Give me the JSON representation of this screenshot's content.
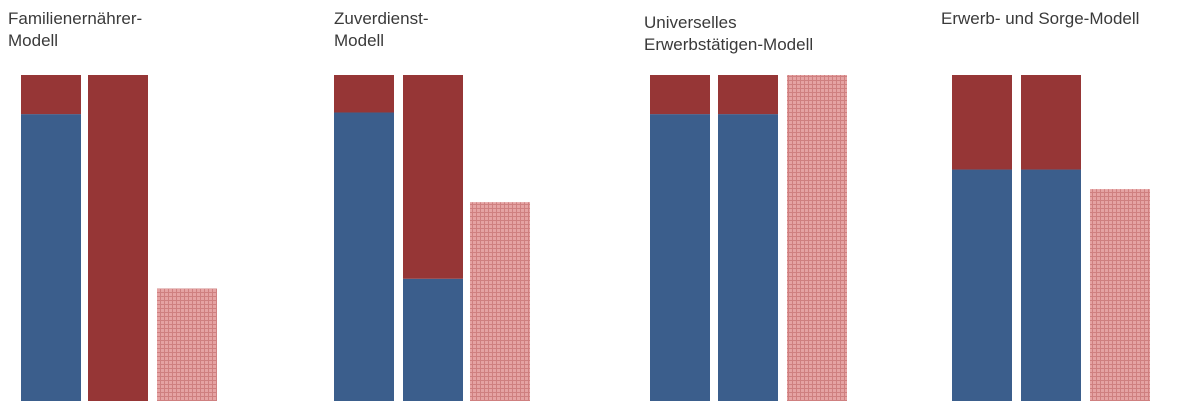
{
  "colors": {
    "blue": "#3b5e8c",
    "red": "#963636",
    "pattern": "#e5a3a3",
    "pattern_line": "#cf8080"
  },
  "chart_data": [
    {
      "type": "bar",
      "stacked": true,
      "title": "Familienernährer-\nModell",
      "ylim": [
        0,
        100
      ],
      "bars": [
        {
          "blue": 88,
          "red": 12
        },
        {
          "blue": 0,
          "red": 100
        },
        {
          "pattern": 34.5
        }
      ]
    },
    {
      "type": "bar",
      "stacked": true,
      "title": "Zuverdienst-\nModell",
      "ylim": [
        0,
        100
      ],
      "bars": [
        {
          "blue": 88.5,
          "red": 11.5
        },
        {
          "blue": 37.5,
          "red": 62.5
        },
        {
          "pattern": 61
        }
      ]
    },
    {
      "type": "bar",
      "stacked": true,
      "title": "Universelles\nErwerbstätigen-Modell",
      "ylim": [
        0,
        100
      ],
      "bars": [
        {
          "blue": 88,
          "red": 12
        },
        {
          "blue": 88,
          "red": 12
        },
        {
          "pattern": 100
        }
      ]
    },
    {
      "type": "bar",
      "stacked": true,
      "title": "Erwerb- und Sorge-Modell",
      "ylim": [
        0,
        100
      ],
      "bars": [
        {
          "blue": 71,
          "red": 29
        },
        {
          "blue": 71,
          "red": 29
        },
        {
          "pattern": 65
        }
      ]
    }
  ]
}
